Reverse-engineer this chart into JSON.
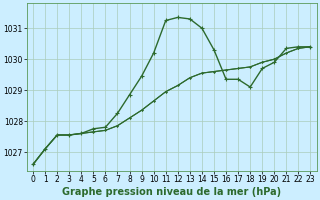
{
  "background_color": "#cceeff",
  "plot_bg_color": "#cceeff",
  "grid_color": "#aaccbb",
  "line_color": "#2d6a2d",
  "xlabel": "Graphe pression niveau de la mer (hPa)",
  "ylim": [
    1026.4,
    1031.8
  ],
  "xlim": [
    -0.5,
    23.5
  ],
  "yticks": [
    1027,
    1028,
    1029,
    1030,
    1031
  ],
  "xticks": [
    0,
    1,
    2,
    3,
    4,
    5,
    6,
    7,
    8,
    9,
    10,
    11,
    12,
    13,
    14,
    15,
    16,
    17,
    18,
    19,
    20,
    21,
    22,
    23
  ],
  "series": [
    {
      "y": [
        1026.6,
        1027.1,
        1027.55,
        1027.55,
        1027.6,
        1027.75,
        1027.8,
        1028.25,
        1028.85,
        1029.45,
        1030.2,
        1031.25,
        1031.35,
        1031.3,
        1031.0,
        1030.3,
        1029.35,
        1029.35,
        1029.1,
        1029.7,
        1029.9,
        1030.35,
        1030.4,
        1030.4
      ],
      "lw": 1.0,
      "ms": 3.0
    },
    {
      "y": [
        1026.6,
        1027.1,
        1027.55,
        1027.55,
        1027.6,
        1027.65,
        1027.7,
        1027.85,
        1028.1,
        1028.35,
        1028.65,
        1028.95,
        1029.15,
        1029.4,
        1029.55,
        1029.6,
        1029.65,
        1029.7,
        1029.75,
        1029.9,
        1030.0,
        1030.2,
        1030.35,
        1030.4
      ],
      "lw": 0.8,
      "ms": 2.0
    },
    {
      "y": [
        1026.6,
        1027.1,
        1027.55,
        1027.55,
        1027.6,
        1027.65,
        1027.7,
        1027.85,
        1028.1,
        1028.35,
        1028.65,
        1028.95,
        1029.15,
        1029.4,
        1029.55,
        1029.6,
        1029.65,
        1029.7,
        1029.75,
        1029.9,
        1030.0,
        1030.2,
        1030.35,
        1030.4
      ],
      "lw": 0.8,
      "ms": 2.0
    }
  ],
  "tick_fontsize": 5.5,
  "xlabel_fontsize": 7.0,
  "xlabel_fontweight": "bold"
}
